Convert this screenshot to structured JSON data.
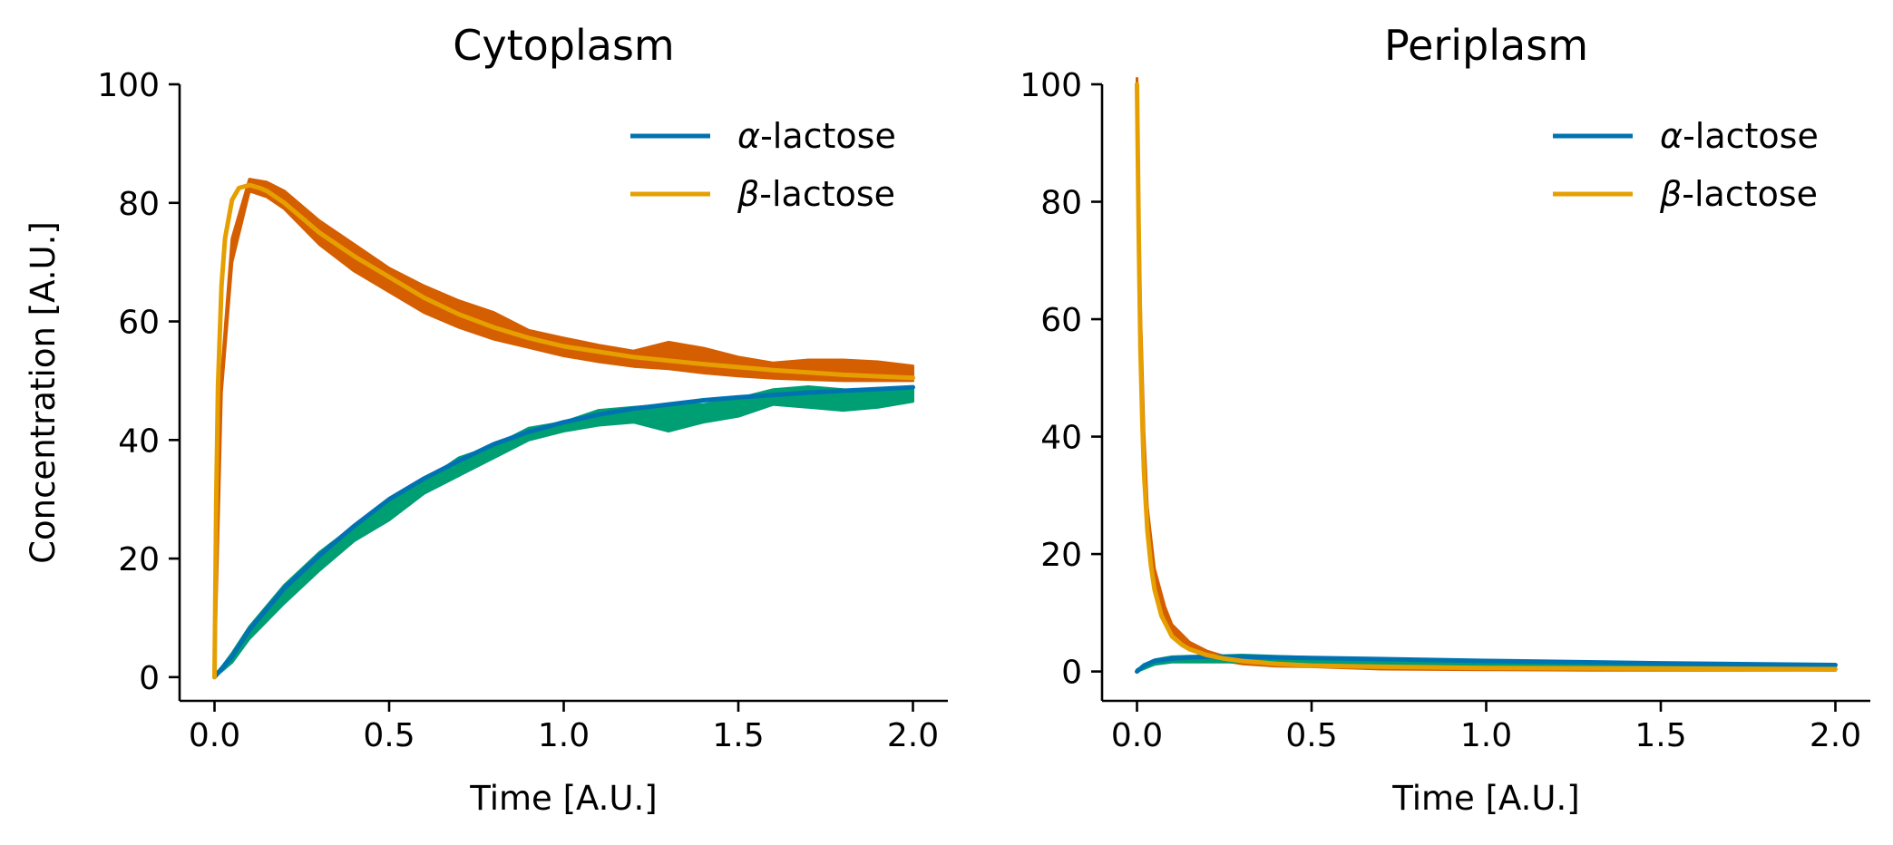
{
  "colors": {
    "alpha_fit": "#0072b2",
    "beta_fit": "#e69f00",
    "alpha_noisy": "#009e73",
    "beta_noisy": "#d55e00"
  },
  "chart_data": [
    {
      "type": "line",
      "title": "Cytoplasm",
      "xlabel": "Time [A.U.]",
      "ylabel": "Concentration [A.U.]",
      "xlim": [
        -0.1,
        2.1
      ],
      "ylim": [
        -4,
        100
      ],
      "xticks": [
        0.0,
        0.5,
        1.0,
        1.5,
        2.0
      ],
      "xtick_labels": [
        "0.0",
        "0.5",
        "1.0",
        "1.5",
        "2.0"
      ],
      "yticks": [
        0,
        20,
        40,
        60,
        80,
        100
      ],
      "ytick_labels": [
        "0",
        "20",
        "40",
        "60",
        "80",
        "100"
      ],
      "grid": false,
      "legend_position": "top-right",
      "legend": [
        {
          "greek": "α",
          "suffix": "-lactose",
          "color": "#0072b2"
        },
        {
          "greek": "β",
          "suffix": "-lactose",
          "color": "#e69f00"
        }
      ],
      "noisy_bands": [
        {
          "color": "#d55e00",
          "x": [
            0.0,
            0.02,
            0.05,
            0.1,
            0.15,
            0.2,
            0.3,
            0.4,
            0.5,
            0.6,
            0.7,
            0.8,
            0.9,
            1.0,
            1.1,
            1.2,
            1.3,
            1.4,
            1.5,
            1.6,
            1.7,
            1.8,
            1.9,
            2.0
          ],
          "lower": [
            0,
            48,
            70,
            82,
            81,
            79,
            73,
            68.5,
            65,
            61.5,
            59,
            57,
            55.6,
            54.2,
            53.2,
            52.4,
            52,
            51.3,
            50.8,
            50.4,
            50.2,
            50,
            50,
            50
          ],
          "upper": [
            0,
            51,
            74,
            84,
            83.5,
            82,
            77,
            73,
            69,
            66,
            63.5,
            61.5,
            58.5,
            57.2,
            56,
            55,
            56.5,
            55.5,
            54,
            53,
            53.5,
            53.5,
            53.2,
            52.5
          ]
        },
        {
          "color": "#009e73",
          "x": [
            0.0,
            0.05,
            0.1,
            0.2,
            0.3,
            0.4,
            0.5,
            0.6,
            0.7,
            0.8,
            0.9,
            1.0,
            1.1,
            1.2,
            1.3,
            1.4,
            1.5,
            1.6,
            1.7,
            1.8,
            1.9,
            2.0
          ],
          "lower": [
            0,
            2.5,
            6.5,
            12.5,
            18,
            23,
            26.5,
            31,
            34,
            37,
            40,
            41.5,
            42.5,
            43,
            41.5,
            43,
            44,
            46,
            45.5,
            45,
            45.5,
            46.5
          ],
          "upper": [
            0,
            4,
            8.5,
            15.5,
            21,
            25.5,
            30,
            33,
            37,
            39,
            42,
            43,
            45,
            45.5,
            46,
            46,
            47,
            48.5,
            49,
            48.5,
            48,
            49
          ]
        }
      ],
      "series": [
        {
          "color": "#0072b2",
          "x": [
            0.0,
            0.05,
            0.1,
            0.2,
            0.3,
            0.4,
            0.5,
            0.6,
            0.7,
            0.8,
            0.9,
            1.0,
            1.1,
            1.2,
            1.3,
            1.4,
            1.5,
            1.6,
            1.7,
            1.8,
            1.9,
            2.0
          ],
          "values": [
            0,
            3.5,
            8,
            15,
            20.5,
            25.5,
            30,
            33.5,
            36.5,
            39.3,
            41.4,
            43,
            44.3,
            45.3,
            46,
            46.7,
            47.2,
            47.6,
            48,
            48.3,
            48.6,
            48.9
          ]
        },
        {
          "color": "#e69f00",
          "x": [
            0.0,
            0.005,
            0.01,
            0.02,
            0.03,
            0.05,
            0.07,
            0.1,
            0.13,
            0.15,
            0.2,
            0.25,
            0.3,
            0.4,
            0.5,
            0.6,
            0.7,
            0.8,
            0.9,
            1.0,
            1.2,
            1.4,
            1.6,
            1.8,
            2.0
          ],
          "values": [
            0,
            30,
            49,
            66,
            74,
            80.5,
            82.5,
            83,
            82.5,
            82,
            80,
            77.5,
            75,
            71,
            67.5,
            64,
            61.2,
            59,
            57.2,
            55.8,
            54,
            52.8,
            51.8,
            51,
            50.5
          ]
        }
      ]
    },
    {
      "type": "line",
      "title": "Periplasm",
      "xlabel": "Time [A.U.]",
      "ylabel": "",
      "xlim": [
        -0.1,
        2.1
      ],
      "ylim": [
        -5,
        100
      ],
      "xticks": [
        0.0,
        0.5,
        1.0,
        1.5,
        2.0
      ],
      "xtick_labels": [
        "0.0",
        "0.5",
        "1.0",
        "1.5",
        "2.0"
      ],
      "yticks": [
        0,
        20,
        40,
        60,
        80,
        100
      ],
      "ytick_labels": [
        "0",
        "20",
        "40",
        "60",
        "80",
        "100"
      ],
      "grid": false,
      "legend_position": "top-right",
      "legend": [
        {
          "greek": "α",
          "suffix": "-lactose",
          "color": "#0072b2"
        },
        {
          "greek": "β",
          "suffix": "-lactose",
          "color": "#e69f00"
        }
      ],
      "noisy_bands": [
        {
          "color": "#d55e00",
          "x": [
            0.0,
            0.01,
            0.02,
            0.03,
            0.05,
            0.08,
            0.1,
            0.15,
            0.2,
            0.25,
            0.3,
            0.4,
            0.5,
            0.7,
            1.0,
            1.3,
            1.6,
            2.0
          ],
          "lower": [
            99,
            60,
            38,
            25,
            15,
            9,
            6.5,
            3.8,
            2.5,
            1.8,
            1.3,
            0.9,
            0.8,
            0.4,
            0.3,
            0.2,
            0.2,
            0.2
          ],
          "upper": [
            101,
            63,
            41,
            28,
            17.5,
            11,
            8,
            5,
            3.5,
            2.6,
            2.1,
            1.7,
            1.5,
            1.2,
            1.0,
            1.0,
            0.9,
            0.9
          ]
        },
        {
          "color": "#009e73",
          "x": [
            0.0,
            0.05,
            0.1,
            0.15,
            0.2,
            0.3,
            0.5,
            1.0,
            1.5,
            2.0
          ],
          "lower": [
            0,
            1.2,
            1.6,
            1.6,
            1.6,
            1.6,
            1.4,
            0.8,
            0.4,
            0.2
          ],
          "upper": [
            0.3,
            2,
            2.5,
            2.6,
            2.6,
            2.8,
            2.4,
            1.8,
            1.3,
            1.0
          ]
        }
      ],
      "series": [
        {
          "color": "#0072b2",
          "x": [
            0.0,
            0.02,
            0.05,
            0.1,
            0.15,
            0.2,
            0.3,
            0.5,
            1.0,
            1.5,
            2.0
          ],
          "values": [
            0,
            1,
            1.8,
            2.2,
            2.4,
            2.5,
            2.5,
            2.3,
            1.8,
            1.4,
            1.1
          ]
        },
        {
          "color": "#e69f00",
          "x": [
            0.0,
            0.005,
            0.01,
            0.015,
            0.02,
            0.03,
            0.04,
            0.05,
            0.07,
            0.1,
            0.13,
            0.15,
            0.2,
            0.25,
            0.3,
            0.4,
            0.5,
            0.7,
            1.0,
            1.5,
            2.0
          ],
          "values": [
            100,
            75,
            55,
            43,
            34,
            24,
            18,
            14,
            9.5,
            6,
            4.5,
            3.8,
            2.8,
            2.2,
            1.8,
            1.3,
            1.0,
            0.8,
            0.6,
            0.5,
            0.4
          ]
        }
      ]
    }
  ]
}
